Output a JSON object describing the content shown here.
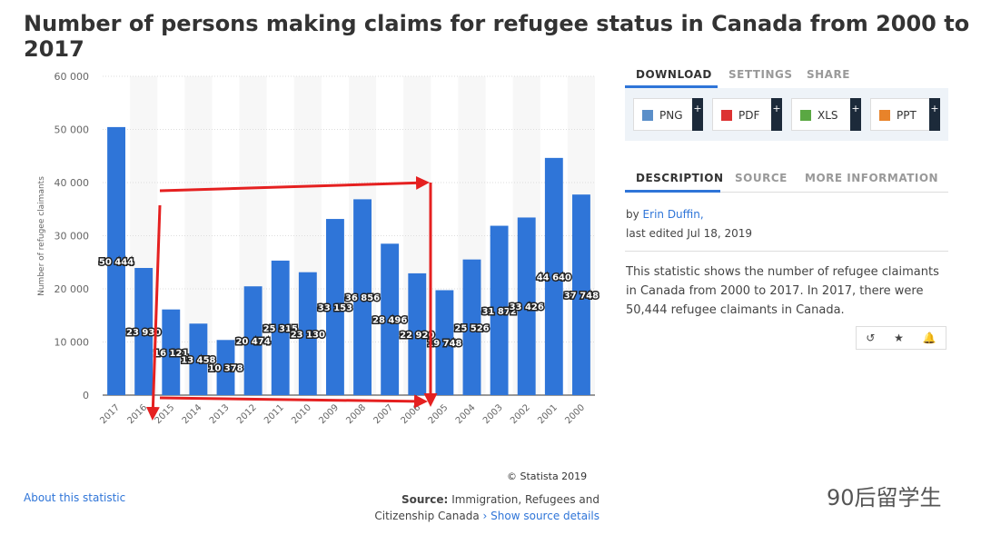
{
  "chart_data": {
    "type": "bar",
    "title": "Number of persons making claims for refugee status in Canada from 2000 to 2017",
    "y_label": "Number of refugee claimants",
    "categories": [
      "2017",
      "2016",
      "2015",
      "2014",
      "2013",
      "2012",
      "2011",
      "2010",
      "2009",
      "2008",
      "2007",
      "2006",
      "2005",
      "2004",
      "2003",
      "2002",
      "2001",
      "2000"
    ],
    "values": [
      50444,
      23930,
      16121,
      13458,
      10378,
      20474,
      25315,
      23130,
      33153,
      36856,
      28496,
      22920,
      19748,
      25526,
      31872,
      33426,
      44640,
      37748
    ],
    "value_labels": [
      "50 444",
      "23 930",
      "16 121",
      "13 458",
      "10 378",
      "20 474",
      "25 315",
      "23 130",
      "33 153",
      "36 856",
      "28 496",
      "22 920",
      "19 748",
      "25 526",
      "31 872",
      "33 426",
      "44 640",
      "37 748"
    ],
    "color": "#2f75d8",
    "ylim": [
      0,
      60000
    ],
    "yticks": [
      0,
      {
        "value": 10000,
        "label": "10 000"
      },
      {
        "value": 20000,
        "label": "20 000"
      },
      {
        "value": 30000,
        "label": "30 000"
      },
      {
        "value": 40000,
        "label": "40 000"
      },
      {
        "value": 50000,
        "label": "50 000"
      },
      {
        "value": 60000,
        "label": "60 000"
      }
    ],
    "grid": true
  },
  "page": {
    "tabs1": [
      "DOWNLOAD",
      "SETTINGS",
      "SHARE"
    ],
    "buttons": [
      "PNG",
      "PDF",
      "XLS",
      "PPT"
    ],
    "tabs2": [
      "DESCRIPTION",
      "SOURCE",
      "MORE INFORMATION"
    ],
    "by": "by",
    "author": "Erin Duffin,",
    "edited": "last edited Jul 18, 2019",
    "description": "This statistic shows the number of refugee claimants in Canada from 2000 to 2017. In 2017, there were 50,444 refugee claimants in Canada.",
    "copyright": "© Statista 2019",
    "about": "About this statistic",
    "source_label": "Source:",
    "source": "Immigration, Refugees and Citizenship Canada",
    "source_link": "› Show source details",
    "watermark": "90后留学生"
  }
}
